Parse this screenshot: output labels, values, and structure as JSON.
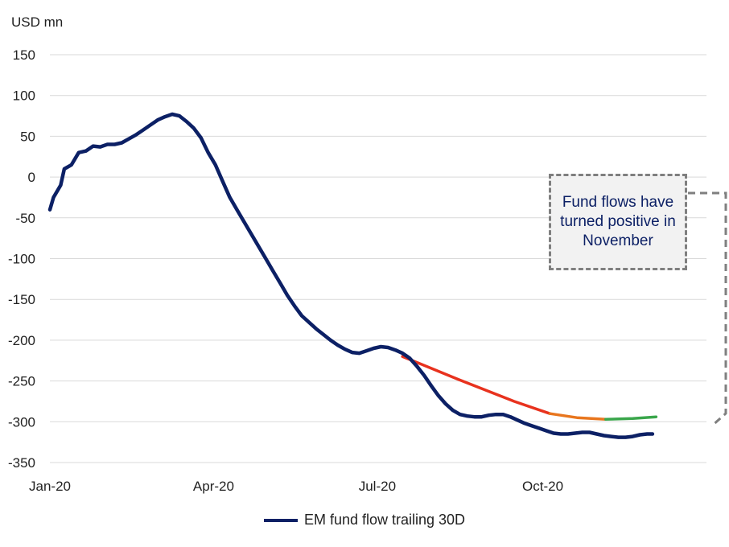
{
  "chart_data": {
    "type": "line",
    "ylabel": "USD mn",
    "ylim": [
      -350,
      150
    ],
    "yticks": [
      150,
      100,
      50,
      0,
      -50,
      -100,
      -150,
      -200,
      -250,
      -300,
      -350
    ],
    "xticks": [
      {
        "date": "2020-01-01",
        "label": "Jan-20"
      },
      {
        "date": "2020-04-01",
        "label": "Apr-20"
      },
      {
        "date": "2020-07-01",
        "label": "Jul-20"
      },
      {
        "date": "2020-10-01",
        "label": "Oct-20"
      }
    ],
    "xlim": [
      "2020-01-01",
      "2020-12-31"
    ],
    "grid": true,
    "legend": "bottom-center",
    "series": [
      {
        "name": "EM fund flow trailing 30D",
        "color": "#0c2065",
        "points": [
          [
            "2020-01-01",
            -40
          ],
          [
            "2020-01-03",
            -25
          ],
          [
            "2020-01-07",
            -10
          ],
          [
            "2020-01-09",
            10
          ],
          [
            "2020-01-13",
            15
          ],
          [
            "2020-01-17",
            30
          ],
          [
            "2020-01-21",
            32
          ],
          [
            "2020-01-25",
            38
          ],
          [
            "2020-01-29",
            37
          ],
          [
            "2020-02-02",
            40
          ],
          [
            "2020-02-06",
            40
          ],
          [
            "2020-02-10",
            42
          ],
          [
            "2020-02-14",
            47
          ],
          [
            "2020-02-18",
            52
          ],
          [
            "2020-02-22",
            58
          ],
          [
            "2020-02-26",
            64
          ],
          [
            "2020-03-01",
            70
          ],
          [
            "2020-03-05",
            74
          ],
          [
            "2020-03-09",
            77
          ],
          [
            "2020-03-13",
            75
          ],
          [
            "2020-03-17",
            68
          ],
          [
            "2020-03-21",
            60
          ],
          [
            "2020-03-25",
            48
          ],
          [
            "2020-03-29",
            30
          ],
          [
            "2020-04-02",
            15
          ],
          [
            "2020-04-06",
            -5
          ],
          [
            "2020-04-10",
            -25
          ],
          [
            "2020-04-14",
            -40
          ],
          [
            "2020-04-18",
            -55
          ],
          [
            "2020-04-22",
            -70
          ],
          [
            "2020-04-26",
            -85
          ],
          [
            "2020-04-30",
            -100
          ],
          [
            "2020-05-04",
            -115
          ],
          [
            "2020-05-08",
            -130
          ],
          [
            "2020-05-12",
            -145
          ],
          [
            "2020-05-16",
            -158
          ],
          [
            "2020-05-20",
            -170
          ],
          [
            "2020-05-24",
            -178
          ],
          [
            "2020-05-28",
            -186
          ],
          [
            "2020-06-01",
            -193
          ],
          [
            "2020-06-05",
            -200
          ],
          [
            "2020-06-09",
            -206
          ],
          [
            "2020-06-13",
            -211
          ],
          [
            "2020-06-17",
            -215
          ],
          [
            "2020-06-21",
            -216
          ],
          [
            "2020-06-25",
            -213
          ],
          [
            "2020-06-29",
            -210
          ],
          [
            "2020-07-03",
            -208
          ],
          [
            "2020-07-07",
            -209
          ],
          [
            "2020-07-11",
            -212
          ],
          [
            "2020-07-15",
            -216
          ],
          [
            "2020-07-19",
            -222
          ],
          [
            "2020-07-23",
            -232
          ],
          [
            "2020-07-27",
            -243
          ],
          [
            "2020-07-31",
            -256
          ],
          [
            "2020-08-04",
            -268
          ],
          [
            "2020-08-08",
            -278
          ],
          [
            "2020-08-12",
            -286
          ],
          [
            "2020-08-16",
            -291
          ],
          [
            "2020-08-20",
            -293
          ],
          [
            "2020-08-24",
            -294
          ],
          [
            "2020-08-28",
            -294
          ],
          [
            "2020-09-01",
            -292
          ],
          [
            "2020-09-05",
            -291
          ],
          [
            "2020-09-09",
            -291
          ],
          [
            "2020-09-13",
            -294
          ],
          [
            "2020-09-17",
            -298
          ],
          [
            "2020-09-21",
            -302
          ],
          [
            "2020-09-25",
            -305
          ],
          [
            "2020-09-29",
            -308
          ],
          [
            "2020-10-03",
            -311
          ],
          [
            "2020-10-07",
            -314
          ],
          [
            "2020-10-11",
            -315
          ],
          [
            "2020-10-15",
            -315
          ],
          [
            "2020-10-19",
            -314
          ],
          [
            "2020-10-23",
            -313
          ],
          [
            "2020-10-27",
            -313
          ],
          [
            "2020-10-31",
            -315
          ],
          [
            "2020-11-04",
            -317
          ],
          [
            "2020-11-08",
            -318
          ],
          [
            "2020-11-12",
            -319
          ],
          [
            "2020-11-16",
            -319
          ],
          [
            "2020-11-20",
            -318
          ],
          [
            "2020-11-24",
            -316
          ],
          [
            "2020-11-28",
            -315
          ],
          [
            "2020-12-01",
            -315
          ]
        ]
      }
    ],
    "trend_overlay": {
      "segments": [
        {
          "color": "#e8321e",
          "points": [
            [
              "2020-07-15",
              -220
            ],
            [
              "2020-08-15",
              -248
            ],
            [
              "2020-09-15",
              -275
            ],
            [
              "2020-10-05",
              -290
            ]
          ]
        },
        {
          "color": "#e8761e",
          "points": [
            [
              "2020-10-05",
              -290
            ],
            [
              "2020-10-20",
              -295
            ],
            [
              "2020-11-05",
              -297
            ]
          ]
        },
        {
          "color": "#3aa64b",
          "points": [
            [
              "2020-11-05",
              -297
            ],
            [
              "2020-11-20",
              -296
            ],
            [
              "2020-12-03",
              -294
            ]
          ]
        }
      ]
    },
    "annotation": {
      "text": "Fund flows have turned positive in November"
    }
  }
}
